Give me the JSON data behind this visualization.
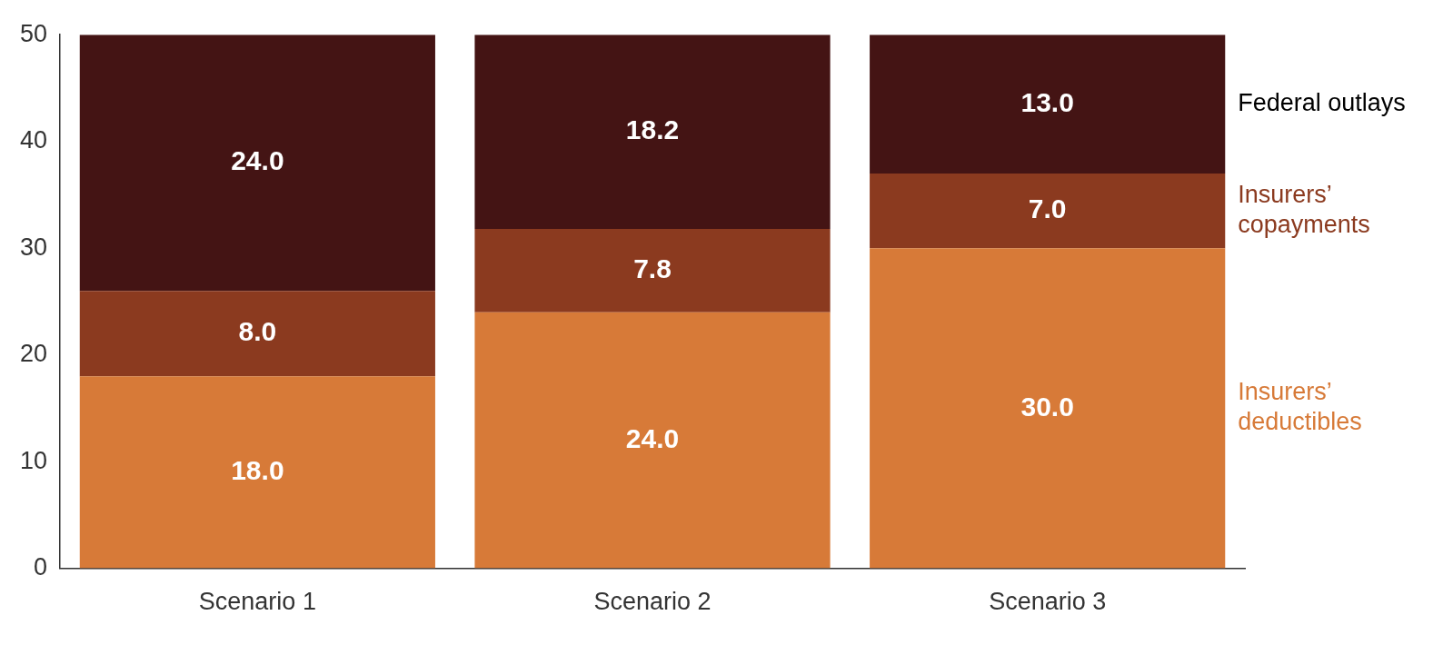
{
  "chart_data": {
    "type": "bar",
    "stacked": true,
    "categories": [
      "Scenario 1",
      "Scenario 2",
      "Scenario 3"
    ],
    "series": [
      {
        "name": "Insurers’ deductibles",
        "color": "#d77a38",
        "values": [
          18.0,
          24.0,
          30.0
        ],
        "value_labels": [
          "18.0",
          "24.0",
          "30.0"
        ]
      },
      {
        "name": "Insurers’ copayments",
        "color": "#8b3a1f",
        "values": [
          8.0,
          7.8,
          7.0
        ],
        "value_labels": [
          "8.0",
          "7.8",
          "7.0"
        ]
      },
      {
        "name": "Federal outlays",
        "color": "#441414",
        "values": [
          24.0,
          18.2,
          13.0
        ],
        "value_labels": [
          "24.0",
          "18.2",
          "13.0"
        ]
      }
    ],
    "ylim": [
      0,
      50
    ],
    "yticks": [
      0,
      10,
      20,
      30,
      40,
      50
    ],
    "grid": false,
    "legend": false
  }
}
